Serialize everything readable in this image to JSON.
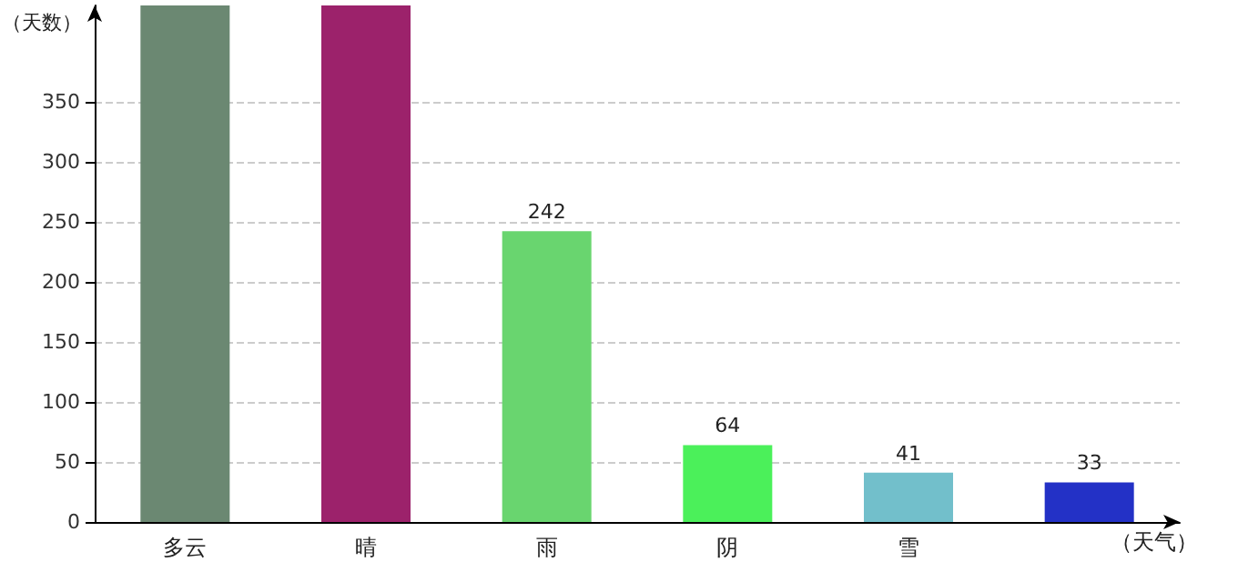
{
  "chart_data": {
    "type": "bar",
    "xlabel": "（天气）",
    "ylabel": "（天数）",
    "categories": [
      "多云",
      "晴",
      "雨",
      "阴",
      "雪",
      null
    ],
    "values": [
      430,
      430,
      242,
      64,
      41,
      33
    ],
    "colors": [
      "#6b8872",
      "#9c226b",
      "#69d56f",
      "#4bf05a",
      "#72bfcb",
      "#2331c6"
    ],
    "value_labels": [
      null,
      null,
      "242",
      "64",
      "41",
      "33"
    ],
    "ylim": [
      0,
      430
    ],
    "yticks": [
      0,
      50,
      100,
      150,
      200,
      250,
      300,
      350
    ],
    "grid": "y"
  }
}
